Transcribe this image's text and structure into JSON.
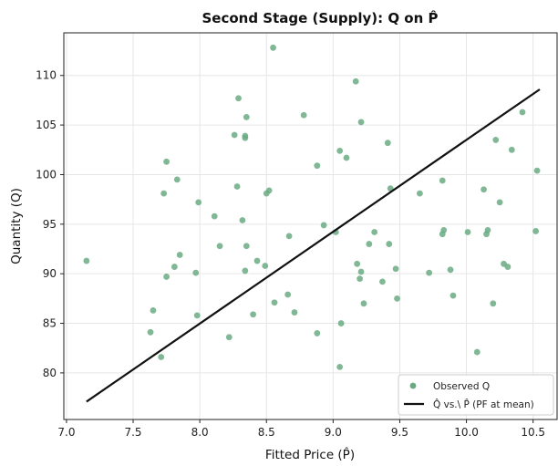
{
  "chart_data": {
    "type": "scatter",
    "title": "Second Stage (Supply): Q on P̂",
    "xlabel": "Fitted Price (P̂)",
    "ylabel": "Quantity (Q)",
    "xlim": [
      6.98,
      10.68
    ],
    "ylim": [
      75.3,
      114.3
    ],
    "xticks": [
      7.0,
      7.5,
      8.0,
      8.5,
      9.0,
      9.5,
      10.0,
      10.5
    ],
    "xtick_labels": [
      "7.0",
      "7.5",
      "8.0",
      "8.5",
      "9.0",
      "9.5",
      "10.0",
      "10.5"
    ],
    "yticks": [
      80,
      85,
      90,
      95,
      100,
      105,
      110
    ],
    "ytick_labels": [
      "80",
      "85",
      "90",
      "95",
      "100",
      "105",
      "110"
    ],
    "grid": true,
    "legend_position": "bottom-right",
    "colors": {
      "points": "#6aaa82",
      "line": "#111111",
      "grid": "#e6e6e6",
      "axes": "#222222"
    },
    "series": [
      {
        "name": "Observed Q",
        "kind": "scatter",
        "points": [
          [
            7.15,
            91.3
          ],
          [
            7.63,
            84.1
          ],
          [
            7.65,
            86.3
          ],
          [
            7.71,
            81.6
          ],
          [
            7.73,
            98.1
          ],
          [
            7.75,
            101.3
          ],
          [
            7.75,
            89.7
          ],
          [
            7.81,
            90.7
          ],
          [
            7.83,
            99.5
          ],
          [
            7.85,
            91.9
          ],
          [
            7.97,
            90.1
          ],
          [
            7.98,
            85.8
          ],
          [
            7.99,
            97.2
          ],
          [
            8.11,
            95.8
          ],
          [
            8.15,
            92.8
          ],
          [
            8.22,
            83.6
          ],
          [
            8.26,
            104.0
          ],
          [
            8.28,
            98.8
          ],
          [
            8.29,
            107.7
          ],
          [
            8.32,
            95.4
          ],
          [
            8.34,
            103.9
          ],
          [
            8.34,
            103.7
          ],
          [
            8.35,
            105.8
          ],
          [
            8.35,
            92.8
          ],
          [
            8.34,
            90.3
          ],
          [
            8.4,
            85.9
          ],
          [
            8.43,
            91.3
          ],
          [
            8.49,
            90.8
          ],
          [
            8.5,
            98.1
          ],
          [
            8.52,
            98.4
          ],
          [
            8.55,
            112.8
          ],
          [
            8.56,
            87.1
          ],
          [
            8.66,
            87.9
          ],
          [
            8.67,
            93.8
          ],
          [
            8.71,
            86.1
          ],
          [
            8.78,
            106.0
          ],
          [
            8.88,
            100.9
          ],
          [
            8.88,
            84.0
          ],
          [
            8.93,
            94.9
          ],
          [
            9.02,
            94.2
          ],
          [
            9.05,
            102.4
          ],
          [
            9.05,
            80.6
          ],
          [
            9.06,
            85.0
          ],
          [
            9.1,
            101.7
          ],
          [
            9.17,
            109.4
          ],
          [
            9.18,
            91.0
          ],
          [
            9.2,
            89.5
          ],
          [
            9.21,
            105.3
          ],
          [
            9.21,
            90.2
          ],
          [
            9.23,
            87.0
          ],
          [
            9.27,
            93.0
          ],
          [
            9.31,
            94.2
          ],
          [
            9.37,
            89.2
          ],
          [
            9.41,
            103.2
          ],
          [
            9.42,
            93.0
          ],
          [
            9.43,
            98.6
          ],
          [
            9.47,
            90.5
          ],
          [
            9.48,
            87.5
          ],
          [
            9.65,
            98.1
          ],
          [
            9.72,
            90.1
          ],
          [
            9.82,
            94.0
          ],
          [
            9.82,
            99.4
          ],
          [
            9.83,
            94.4
          ],
          [
            9.88,
            90.4
          ],
          [
            9.9,
            87.8
          ],
          [
            10.01,
            94.2
          ],
          [
            10.08,
            82.1
          ],
          [
            10.13,
            98.5
          ],
          [
            10.15,
            94.0
          ],
          [
            10.16,
            94.4
          ],
          [
            10.2,
            87.0
          ],
          [
            10.22,
            103.5
          ],
          [
            10.25,
            97.2
          ],
          [
            10.28,
            91.0
          ],
          [
            10.31,
            90.7
          ],
          [
            10.34,
            102.5
          ],
          [
            10.42,
            106.3
          ],
          [
            10.52,
            94.3
          ],
          [
            10.53,
            100.4
          ]
        ]
      },
      {
        "name": "Q̂ vs.\\ P̂ (PF at mean)",
        "kind": "line",
        "points": [
          [
            7.15,
            77.1
          ],
          [
            10.55,
            108.6
          ]
        ]
      }
    ]
  }
}
